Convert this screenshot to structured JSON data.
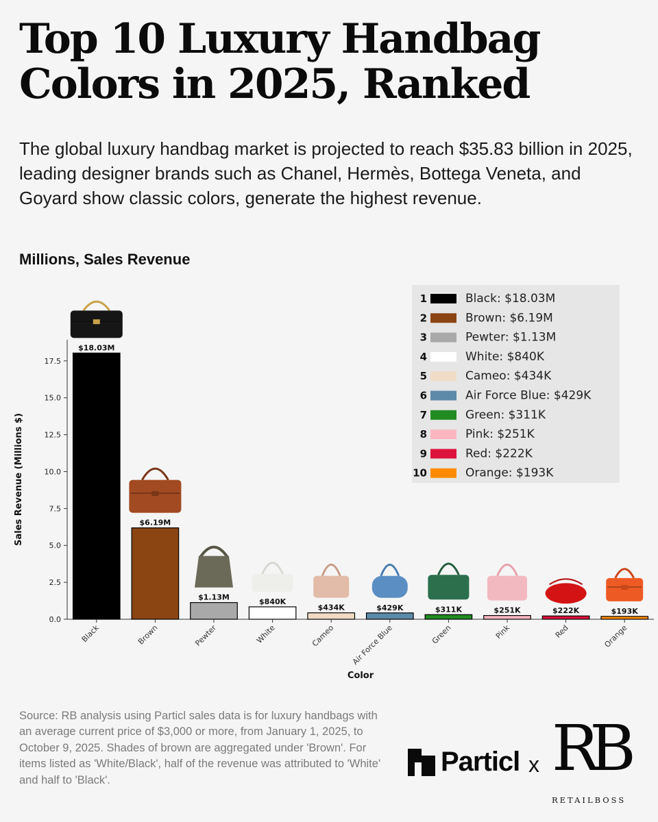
{
  "header": {
    "title": "Top 10 Luxury Handbag Colors in 2025, Ranked",
    "subtitle": "The global luxury handbag market is projected to reach $35.83 billion in 2025, leading designer brands such as Chanel, Hermès, Bottega Veneta, and Goyard show classic colors, generate the highest revenue.",
    "section_label": "Millions, Sales Revenue"
  },
  "chart_data": {
    "type": "bar",
    "categories": [
      "Black",
      "Brown",
      "Pewter",
      "White",
      "Cameo",
      "Air Force Blue",
      "Green",
      "Pink",
      "Red",
      "Orange"
    ],
    "values": [
      18.03,
      6.19,
      1.13,
      0.84,
      0.434,
      0.429,
      0.311,
      0.251,
      0.222,
      0.193
    ],
    "data_labels": [
      "$18.03M",
      "$6.19M",
      "$1.13M",
      "$840K",
      "$434K",
      "$429K",
      "$311K",
      "$251K",
      "$222K",
      "$193K"
    ],
    "colors": [
      "#000000",
      "#8b4513",
      "#a9a9a9",
      "#ffffff",
      "#f0dcc6",
      "#5d8aa8",
      "#228b22",
      "#ffb6c1",
      "#dc143c",
      "#ff8c00"
    ],
    "bag_icons": [
      "quilted-flap-bag-icon",
      "birkin-bag-icon",
      "hobo-bag-icon",
      "baguette-bag-icon",
      "tote-bag-icon",
      "knot-bag-icon",
      "goyard-tote-icon",
      "mcm-tote-icon",
      "pouch-bag-icon",
      "constance-bag-icon"
    ],
    "xlabel": "Color",
    "ylabel": "Sales Revenue (Millions $)",
    "ylim": [
      0,
      18.93
    ],
    "yticks": [
      0.0,
      2.5,
      5.0,
      7.5,
      10.0,
      12.5,
      15.0,
      17.5
    ],
    "ytick_labels": [
      "0.0",
      "2.5",
      "5.0",
      "7.5",
      "10.0",
      "12.5",
      "15.0",
      "17.5"
    ],
    "grid": false,
    "legend": {
      "placement": "top-right",
      "entries": [
        {
          "rank": "1",
          "label": "Black: $18.03M"
        },
        {
          "rank": "2",
          "label": "Brown: $6.19M"
        },
        {
          "rank": "3",
          "label": "Pewter: $1.13M"
        },
        {
          "rank": "4",
          "label": "White: $840K"
        },
        {
          "rank": "5",
          "label": "Cameo: $434K"
        },
        {
          "rank": "6",
          "label": "Air Force Blue: $429K"
        },
        {
          "rank": "7",
          "label": "Green: $311K"
        },
        {
          "rank": "8",
          "label": "Pink: $251K"
        },
        {
          "rank": "9",
          "label": "Red: $222K"
        },
        {
          "rank": "10",
          "label": "Orange: $193K"
        }
      ]
    }
  },
  "footer": {
    "source": "Source: RB analysis using Particl sales data is for luxury handbags with an average current price of $3,000 or more, from January 1, 2025, to October 9, 2025. Shades of brown are aggregated under 'Brown'. For items listed as 'White/Black', half of the revenue was attributed to 'White' and half to 'Black'.",
    "particl_logo": "Particl",
    "separator": "x",
    "rb_logo_letters": "RB",
    "rb_logo_name": "RETAILBOSS"
  }
}
